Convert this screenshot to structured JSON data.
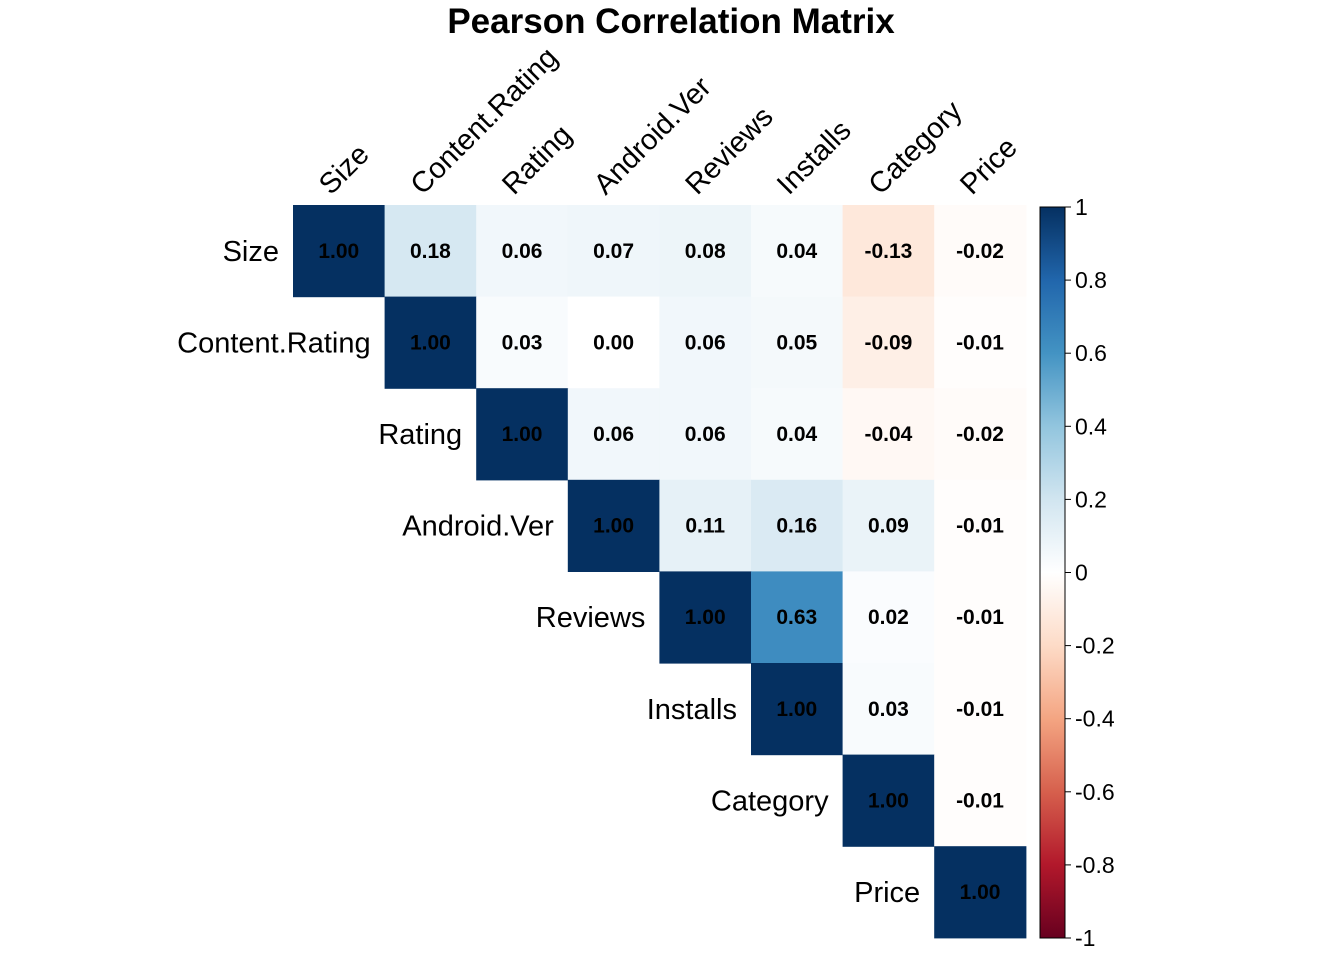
{
  "chart_data": {
    "type": "heatmap",
    "title": "Pearson Correlation Matrix",
    "variables": [
      "Size",
      "Content.Rating",
      "Rating",
      "Android.Ver",
      "Reviews",
      "Installs",
      "Category",
      "Price"
    ],
    "matrix": [
      [
        1.0,
        0.18,
        0.06,
        0.07,
        0.08,
        0.04,
        -0.13,
        -0.02
      ],
      [
        null,
        1.0,
        0.03,
        0.0,
        0.06,
        0.05,
        -0.09,
        -0.01
      ],
      [
        null,
        null,
        1.0,
        0.06,
        0.06,
        0.04,
        -0.04,
        -0.02
      ],
      [
        null,
        null,
        null,
        1.0,
        0.11,
        0.16,
        0.09,
        -0.01
      ],
      [
        null,
        null,
        null,
        null,
        1.0,
        0.63,
        0.02,
        -0.01
      ],
      [
        null,
        null,
        null,
        null,
        null,
        1.0,
        0.03,
        -0.01
      ],
      [
        null,
        null,
        null,
        null,
        null,
        null,
        1.0,
        -0.01
      ],
      [
        null,
        null,
        null,
        null,
        null,
        null,
        null,
        1.0
      ]
    ],
    "shape": "upper-triangle",
    "color_scale": {
      "range": [
        -1,
        1
      ],
      "ticks": [
        "1",
        "0.8",
        "0.6",
        "0.4",
        "0.2",
        "0",
        "-0.2",
        "-0.4",
        "-0.6",
        "-0.8",
        "-1"
      ],
      "stops": [
        {
          "value": -1.0,
          "color": "#67001F"
        },
        {
          "value": -0.8,
          "color": "#B2182B"
        },
        {
          "value": -0.6,
          "color": "#D6604D"
        },
        {
          "value": -0.4,
          "color": "#F4A582"
        },
        {
          "value": -0.2,
          "color": "#FDDBC7"
        },
        {
          "value": 0.0,
          "color": "#FFFFFF"
        },
        {
          "value": 0.2,
          "color": "#D1E5F0"
        },
        {
          "value": 0.4,
          "color": "#92C5DE"
        },
        {
          "value": 0.6,
          "color": "#4393C3"
        },
        {
          "value": 0.8,
          "color": "#2166AC"
        },
        {
          "value": 1.0,
          "color": "#053061"
        }
      ]
    },
    "legend": "right"
  }
}
